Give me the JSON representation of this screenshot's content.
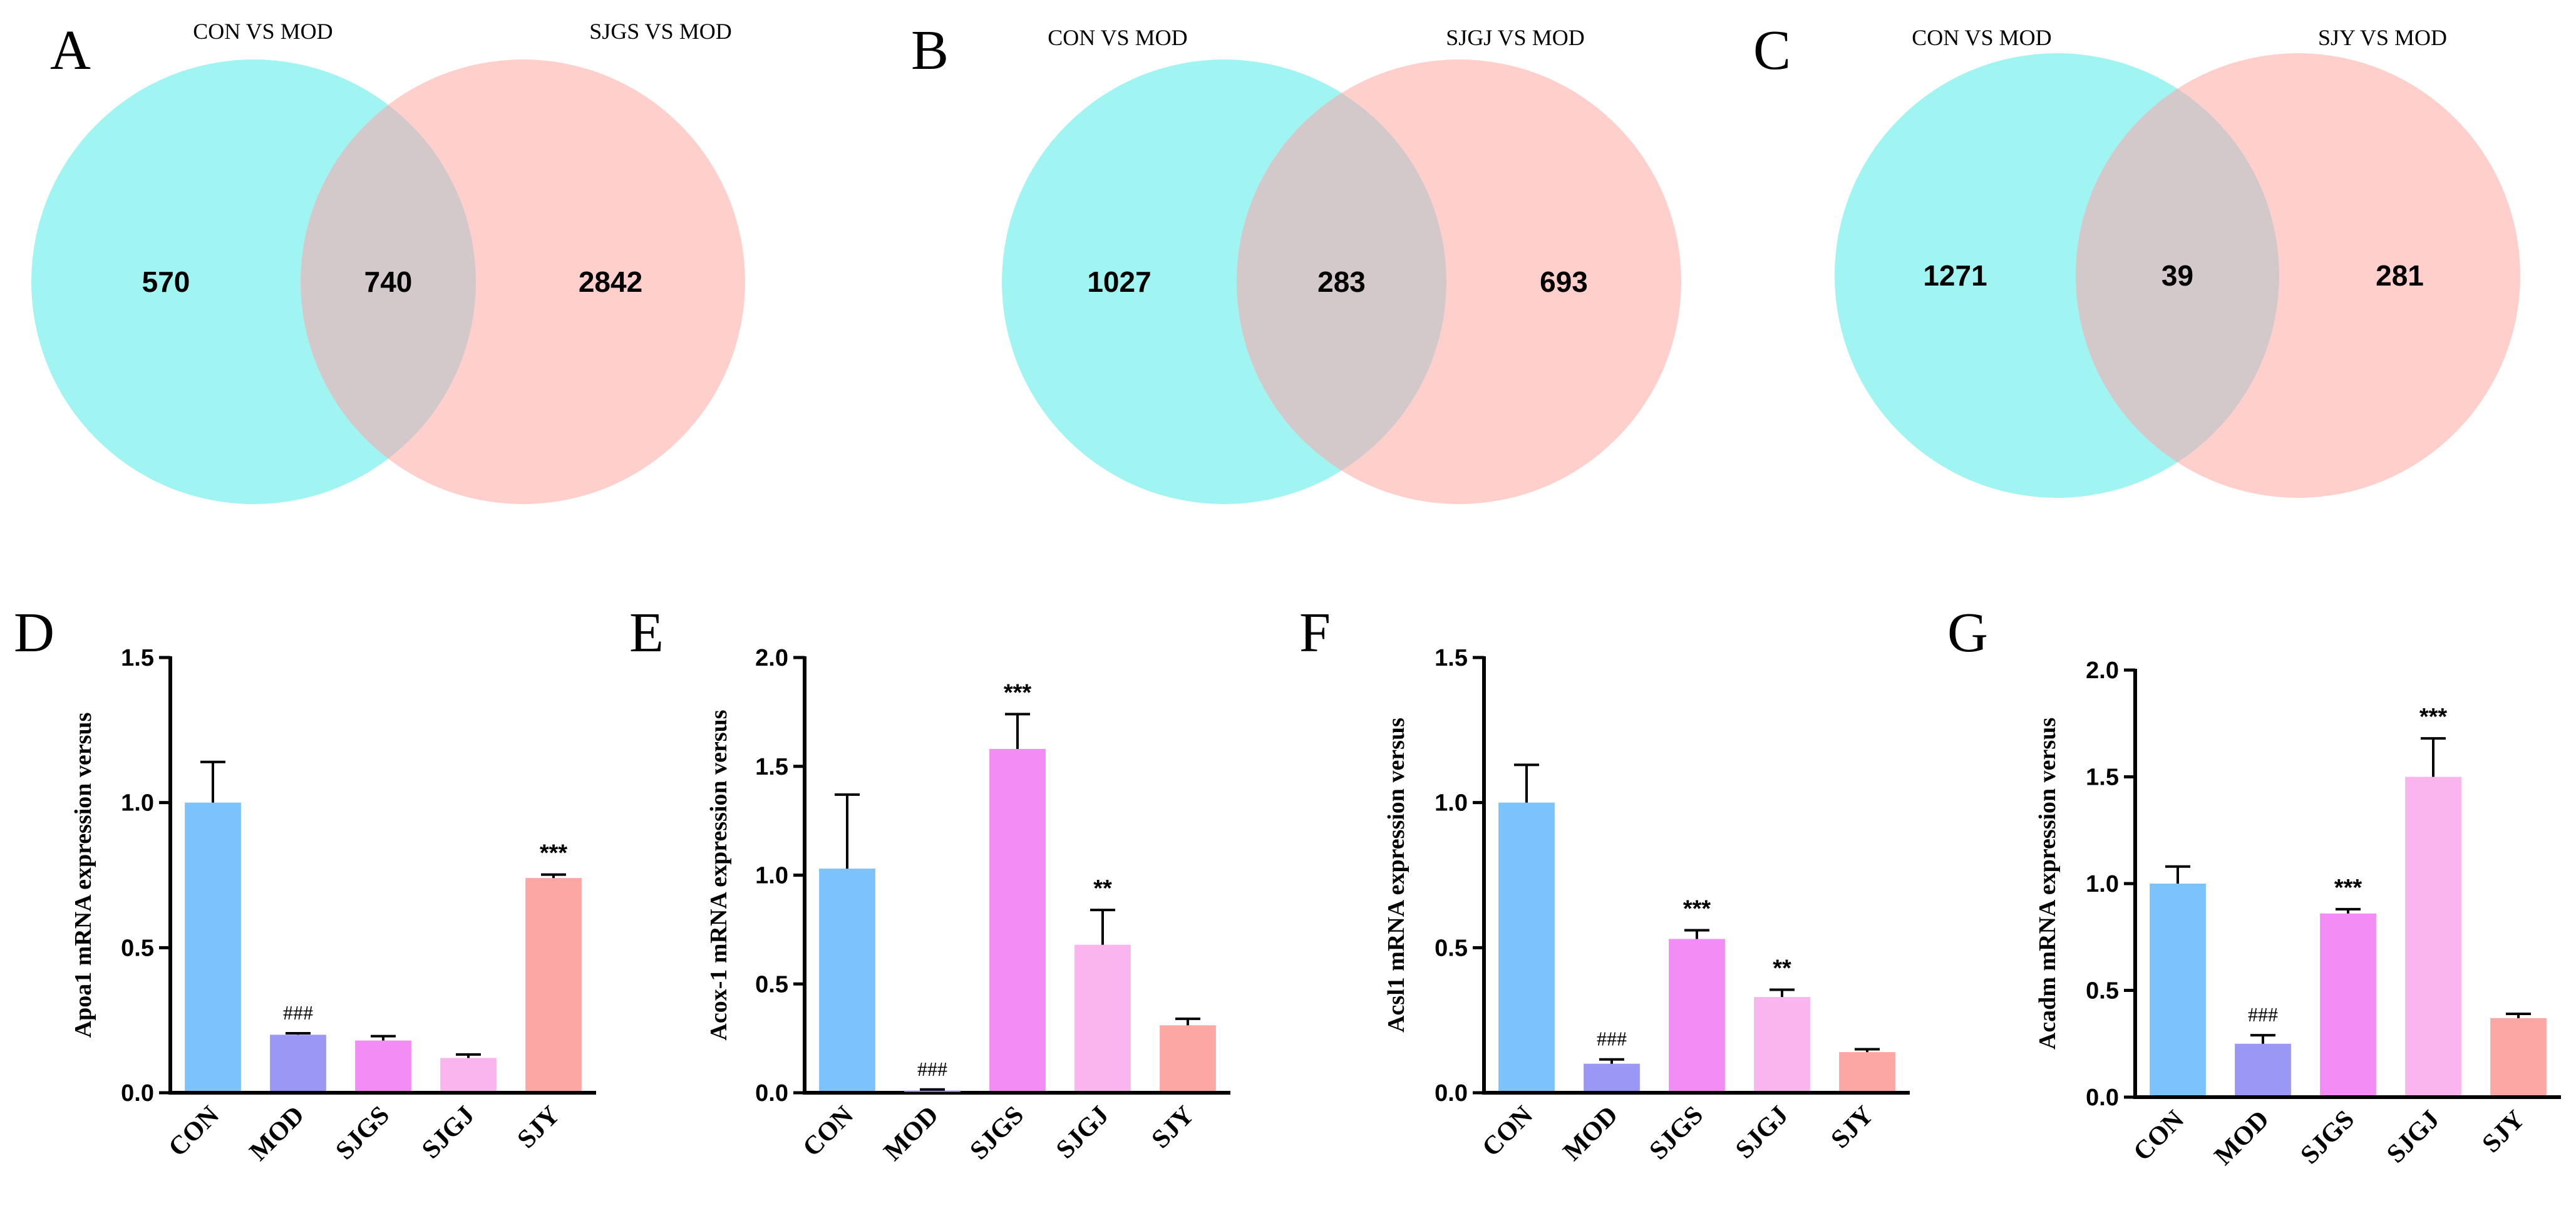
{
  "chart_data": [
    {
      "type": "venn",
      "panel": "A",
      "left_label": "CON VS MOD",
      "right_label": "SJGS VS MOD",
      "left_only": "570",
      "overlap": "740",
      "right_only": "2842",
      "left_color": "#a0f4f2",
      "right_color": "#ffcfcc",
      "overlap_color": "#d4c9ca"
    },
    {
      "type": "venn",
      "panel": "B",
      "left_label": "CON VS MOD",
      "right_label": "SJGJ VS MOD",
      "left_only": "1027",
      "overlap": "283",
      "right_only": "693",
      "left_color": "#a0f4f2",
      "right_color": "#ffcfcc",
      "overlap_color": "#d4c9ca"
    },
    {
      "type": "venn",
      "panel": "C",
      "left_label": "CON VS MOD",
      "right_label": "SJY VS MOD",
      "left_only": "1271",
      "overlap": "39",
      "right_only": "281",
      "left_color": "#a0f4f2",
      "right_color": "#ffcfcc",
      "overlap_color": "#d4c9ca"
    },
    {
      "type": "bar",
      "panel": "D",
      "ylabel": "Apoa1 mRNA expression versus",
      "categories": [
        "CON",
        "MOD",
        "SJGS",
        "SJGJ",
        "SJY"
      ],
      "values": [
        1.0,
        0.2,
        0.18,
        0.12,
        0.74
      ],
      "errors": [
        0.14,
        0.005,
        0.015,
        0.012,
        0.012
      ],
      "annotations": [
        "",
        "###",
        "",
        "",
        "***"
      ],
      "ylim": [
        0,
        1.5
      ],
      "yticks": [
        "0.0",
        "0.5",
        "1.0",
        "1.5"
      ],
      "colors": [
        "#7cc3fb",
        "#9a97f5",
        "#f48cf5",
        "#fbb5ee",
        "#fda7a5"
      ]
    },
    {
      "type": "bar",
      "panel": "E",
      "ylabel": "Acox-1 mRNA expression versus",
      "categories": [
        "CON",
        "MOD",
        "SJGS",
        "SJGJ",
        "SJY"
      ],
      "values": [
        1.03,
        0.01,
        1.58,
        0.68,
        0.31
      ],
      "errors": [
        0.34,
        0.005,
        0.16,
        0.16,
        0.03
      ],
      "annotations": [
        "",
        "###",
        "***",
        "**",
        ""
      ],
      "ylim": [
        0,
        2.0
      ],
      "yticks": [
        "0.0",
        "0.5",
        "1.0",
        "1.5",
        "2.0"
      ],
      "colors": [
        "#7cc3fb",
        "#9a97f5",
        "#f48cf5",
        "#fbb5ee",
        "#fda7a5"
      ]
    },
    {
      "type": "bar",
      "panel": "F",
      "ylabel": "Acsl1 mRNA expression versus",
      "categories": [
        "CON",
        "MOD",
        "SJGS",
        "SJGJ",
        "SJY"
      ],
      "values": [
        1.0,
        0.1,
        0.53,
        0.33,
        0.14
      ],
      "errors": [
        0.13,
        0.015,
        0.03,
        0.025,
        0.01
      ],
      "annotations": [
        "",
        "###",
        "***",
        "**",
        ""
      ],
      "ylim": [
        0,
        1.5
      ],
      "yticks": [
        "0.0",
        "0.5",
        "1.0",
        "1.5"
      ],
      "colors": [
        "#7cc3fb",
        "#9a97f5",
        "#f48cf5",
        "#fbb5ee",
        "#fda7a5"
      ]
    },
    {
      "type": "bar",
      "panel": "G",
      "ylabel": "Acadm mRNA expression versus",
      "categories": [
        "CON",
        "MOD",
        "SJGS",
        "SJGJ",
        "SJY"
      ],
      "values": [
        1.0,
        0.25,
        0.86,
        1.5,
        0.37
      ],
      "errors": [
        0.08,
        0.04,
        0.02,
        0.18,
        0.02
      ],
      "annotations": [
        "",
        "###",
        "***",
        "***",
        ""
      ],
      "ylim": [
        0,
        2.0
      ],
      "yticks": [
        "0.0",
        "0.5",
        "1.0",
        "1.5",
        "2.0"
      ],
      "colors": [
        "#7cc3fb",
        "#9a97f5",
        "#f48cf5",
        "#fbb5ee",
        "#fda7a5"
      ]
    }
  ]
}
